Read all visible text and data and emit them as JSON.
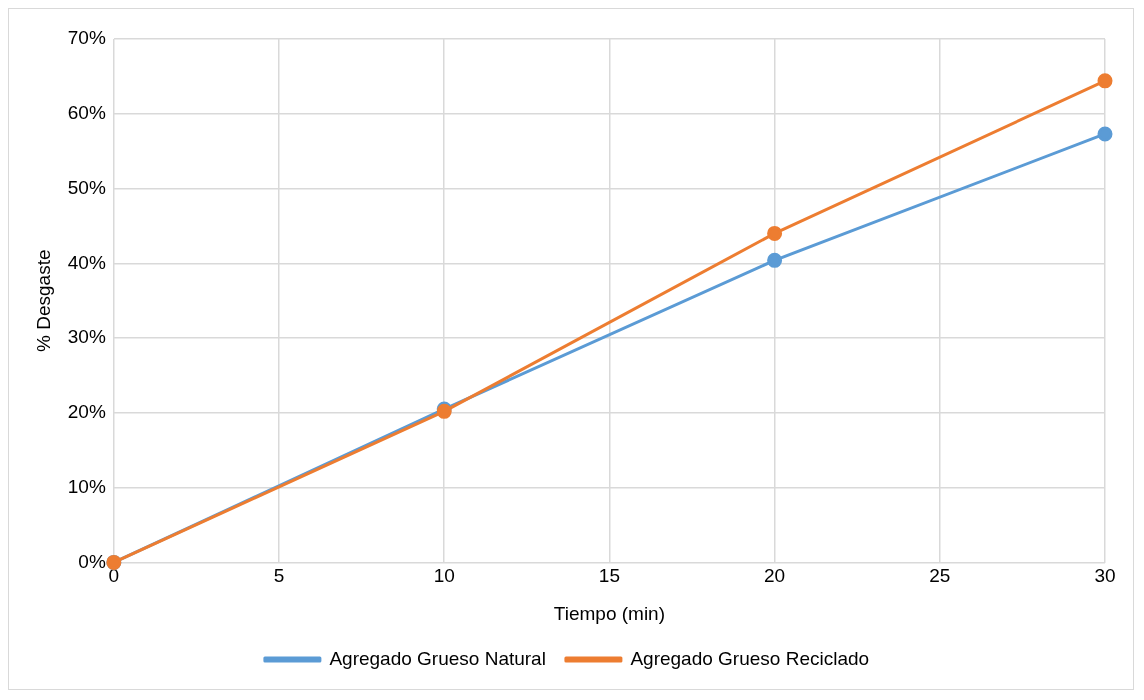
{
  "chart_data": {
    "type": "line",
    "xlabel": "Tiempo (min)",
    "ylabel": "% Desgaste",
    "x": [
      0,
      10,
      20,
      30
    ],
    "series": [
      {
        "name": "Agregado Grueso Natural",
        "color": "#5b9bd5",
        "values": [
          0,
          20.5,
          40.4,
          57.3
        ]
      },
      {
        "name": "Agregado Grueso Reciclado",
        "color": "#ed7d31",
        "values": [
          0,
          20.2,
          44.0,
          64.4
        ]
      }
    ],
    "xlim": [
      0,
      30
    ],
    "xticks": [
      0,
      5,
      10,
      15,
      20,
      25,
      30
    ],
    "ylim": [
      0,
      70
    ],
    "yticks": [
      {
        "value": 0,
        "label": "0%"
      },
      {
        "value": 10,
        "label": "10%"
      },
      {
        "value": 20,
        "label": "20%"
      },
      {
        "value": 30,
        "label": "30%"
      },
      {
        "value": 40,
        "label": "40%"
      },
      {
        "value": 50,
        "label": "50%"
      },
      {
        "value": 60,
        "label": "60%"
      },
      {
        "value": 70,
        "label": "70%"
      }
    ],
    "grid": true,
    "legend": "bottom",
    "marker": "circle",
    "line_style": "solid"
  }
}
